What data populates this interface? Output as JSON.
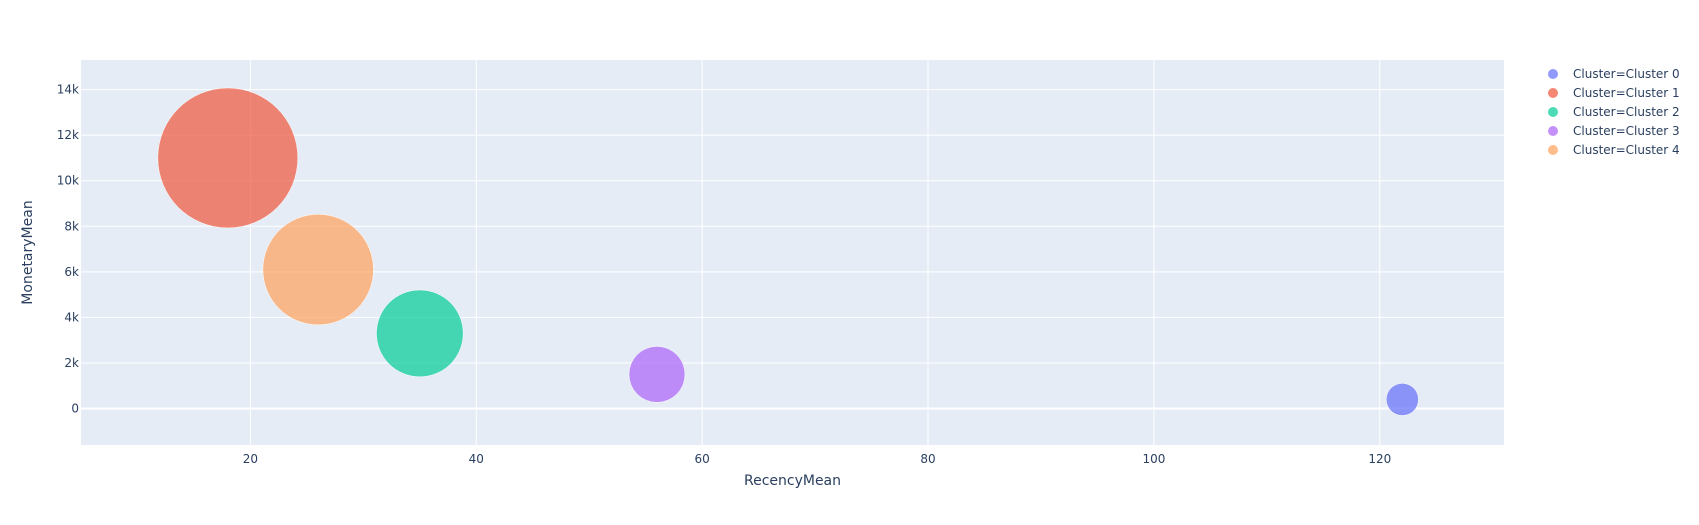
{
  "chart_data": {
    "type": "scatter",
    "xlabel": "RecencyMean",
    "ylabel": "MonetaryMean",
    "xlim": [
      5,
      131
    ],
    "ylim": [
      -1600,
      15300
    ],
    "x_ticks": [
      20,
      40,
      60,
      80,
      100,
      120
    ],
    "y_ticks": [
      0,
      2000,
      4000,
      6000,
      8000,
      10000,
      12000,
      14000
    ],
    "y_tick_labels": [
      "0",
      "2k",
      "4k",
      "6k",
      "8k",
      "10k",
      "12k",
      "14k"
    ],
    "grid": true,
    "legend_position": "right",
    "legend_title": "",
    "series": [
      {
        "name": "Cluster=Cluster 0",
        "color": "#636efa",
        "x": [
          122
        ],
        "y": [
          400
        ],
        "size": [
          0.23
        ]
      },
      {
        "name": "Cluster=Cluster 1",
        "color": "#EF553B",
        "x": [
          18
        ],
        "y": [
          11000
        ],
        "size": [
          1.0
        ]
      },
      {
        "name": "Cluster=Cluster 2",
        "color": "#00cc96",
        "x": [
          35
        ],
        "y": [
          3300
        ],
        "size": [
          0.62
        ]
      },
      {
        "name": "Cluster=Cluster 3",
        "color": "#ab63fa",
        "x": [
          56
        ],
        "y": [
          1500
        ],
        "size": [
          0.4
        ]
      },
      {
        "name": "Cluster=Cluster 4",
        "color": "#FFA15A",
        "x": [
          26
        ],
        "y": [
          6100
        ],
        "size": [
          0.79
        ]
      }
    ]
  },
  "colors": {
    "plot_background": "#e5ecf6",
    "grid": "#ffffff",
    "text": "#2a3f5f"
  }
}
